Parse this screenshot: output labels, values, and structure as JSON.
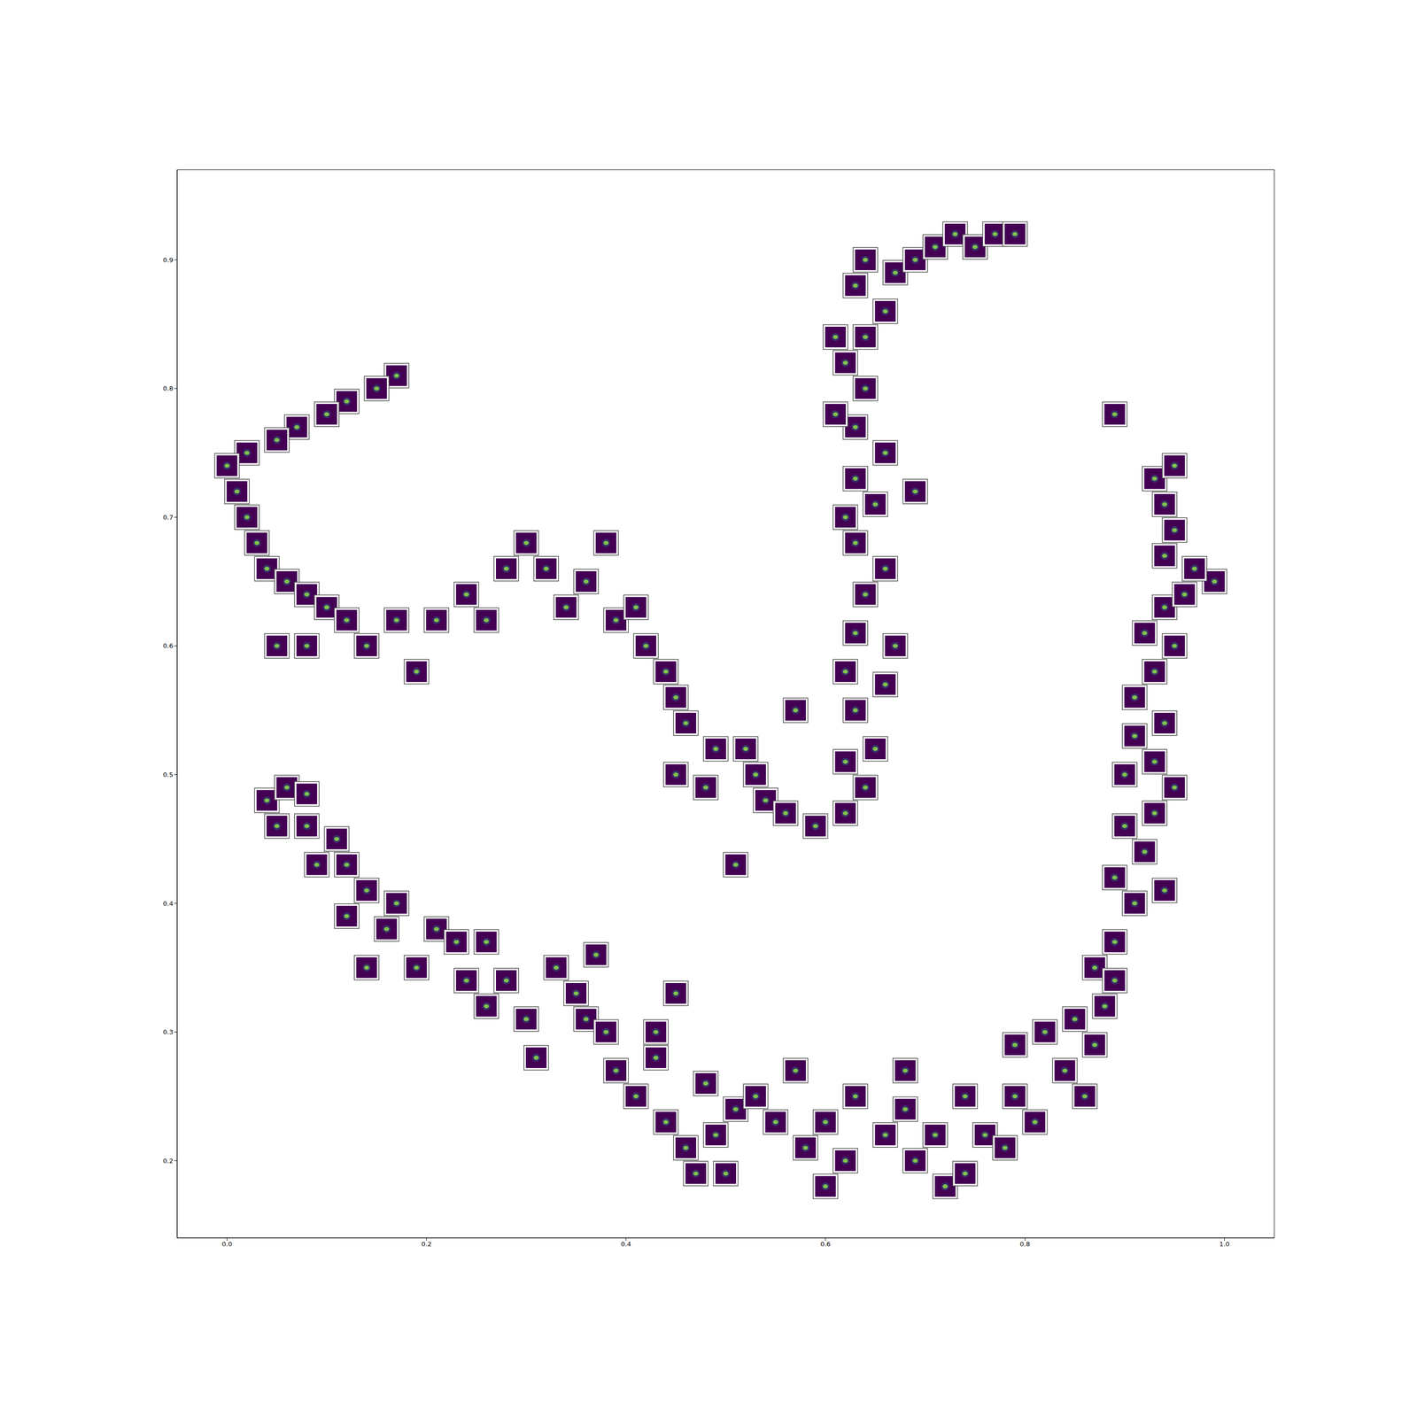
{
  "chart_data": {
    "type": "scatter",
    "color": "#440154",
    "marker": "square",
    "xlim": [
      -0.05,
      1.05
    ],
    "ylim": [
      0.14,
      0.97
    ],
    "xticks": [
      {
        "value": 0,
        "label": "0.0"
      },
      0.2,
      0.4,
      0.6,
      0.8,
      {
        "value": 1,
        "label": "1.0"
      }
    ],
    "yticks": [
      0.2,
      0.3,
      0.4,
      0.5,
      0.6,
      0.7,
      0.8,
      0.9
    ],
    "grid": false,
    "x": [
      0.17,
      0.15,
      0.12,
      0.1,
      0.07,
      0.05,
      0.02,
      0.0,
      0.01,
      0.02,
      0.03,
      0.04,
      0.06,
      0.08,
      0.1,
      0.05,
      0.08,
      0.12,
      0.14,
      0.17,
      0.19,
      0.21,
      0.24,
      0.26,
      0.28,
      0.3,
      0.32,
      0.34,
      0.36,
      0.38,
      0.39,
      0.41,
      0.42,
      0.44,
      0.45,
      0.46,
      0.49,
      0.45,
      0.48,
      0.52,
      0.53,
      0.54,
      0.56,
      0.59,
      0.62,
      0.64,
      0.62,
      0.65,
      0.63,
      0.66,
      0.62,
      0.63,
      0.67,
      0.64,
      0.66,
      0.63,
      0.62,
      0.65,
      0.63,
      0.66,
      0.63,
      0.61,
      0.64,
      0.62,
      0.61,
      0.64,
      0.66,
      0.63,
      0.64,
      0.67,
      0.69,
      0.71,
      0.73,
      0.75,
      0.77,
      0.79,
      0.69,
      0.51,
      0.57,
      0.04,
      0.06,
      0.08,
      0.05,
      0.08,
      0.11,
      0.09,
      0.12,
      0.14,
      0.17,
      0.12,
      0.16,
      0.21,
      0.14,
      0.19,
      0.23,
      0.26,
      0.24,
      0.26,
      0.28,
      0.3,
      0.31,
      0.33,
      0.35,
      0.37,
      0.36,
      0.38,
      0.39,
      0.41,
      0.43,
      0.43,
      0.45,
      0.44,
      0.46,
      0.48,
      0.49,
      0.5,
      0.47,
      0.51,
      0.53,
      0.55,
      0.57,
      0.58,
      0.6,
      0.62,
      0.6,
      0.63,
      0.66,
      0.68,
      0.68,
      0.69,
      0.72,
      0.71,
      0.74,
      0.76,
      0.74,
      0.78,
      0.79,
      0.79,
      0.81,
      0.82,
      0.84,
      0.85,
      0.86,
      0.87,
      0.88,
      0.87,
      0.89,
      0.89,
      0.91,
      0.89,
      0.92,
      0.9,
      0.94,
      0.93,
      0.95,
      0.9,
      0.93,
      0.91,
      0.94,
      0.91,
      0.93,
      0.95,
      0.92,
      0.94,
      0.96,
      0.99,
      0.97,
      0.94,
      0.95,
      0.94,
      0.93,
      0.95,
      0.89
    ],
    "values": [
      0.81,
      0.8,
      0.79,
      0.78,
      0.77,
      0.76,
      0.75,
      0.74,
      0.72,
      0.7,
      0.68,
      0.66,
      0.65,
      0.64,
      0.63,
      0.6,
      0.6,
      0.62,
      0.6,
      0.62,
      0.58,
      0.62,
      0.64,
      0.62,
      0.66,
      0.68,
      0.66,
      0.63,
      0.65,
      0.68,
      0.62,
      0.63,
      0.6,
      0.58,
      0.56,
      0.54,
      0.52,
      0.5,
      0.49,
      0.52,
      0.5,
      0.48,
      0.47,
      0.46,
      0.47,
      0.49,
      0.51,
      0.52,
      0.55,
      0.57,
      0.58,
      0.61,
      0.6,
      0.64,
      0.66,
      0.68,
      0.7,
      0.71,
      0.73,
      0.75,
      0.77,
      0.78,
      0.8,
      0.82,
      0.84,
      0.84,
      0.86,
      0.88,
      0.9,
      0.89,
      0.9,
      0.91,
      0.92,
      0.91,
      0.92,
      0.92,
      0.72,
      0.43,
      0.55,
      0.48,
      0.49,
      0.485,
      0.46,
      0.46,
      0.45,
      0.43,
      0.43,
      0.41,
      0.4,
      0.39,
      0.38,
      0.38,
      0.35,
      0.35,
      0.37,
      0.37,
      0.34,
      0.32,
      0.34,
      0.31,
      0.28,
      0.35,
      0.33,
      0.36,
      0.31,
      0.3,
      0.27,
      0.25,
      0.28,
      0.3,
      0.33,
      0.23,
      0.21,
      0.26,
      0.22,
      0.19,
      0.19,
      0.24,
      0.25,
      0.23,
      0.27,
      0.21,
      0.23,
      0.2,
      0.18,
      0.25,
      0.22,
      0.24,
      0.27,
      0.2,
      0.18,
      0.22,
      0.25,
      0.22,
      0.19,
      0.21,
      0.25,
      0.29,
      0.23,
      0.3,
      0.27,
      0.31,
      0.25,
      0.29,
      0.32,
      0.35,
      0.37,
      0.34,
      0.4,
      0.42,
      0.44,
      0.46,
      0.41,
      0.47,
      0.49,
      0.5,
      0.51,
      0.53,
      0.54,
      0.56,
      0.58,
      0.6,
      0.61,
      0.63,
      0.64,
      0.65,
      0.66,
      0.67,
      0.69,
      0.71,
      0.73,
      0.74,
      0.78
    ]
  }
}
